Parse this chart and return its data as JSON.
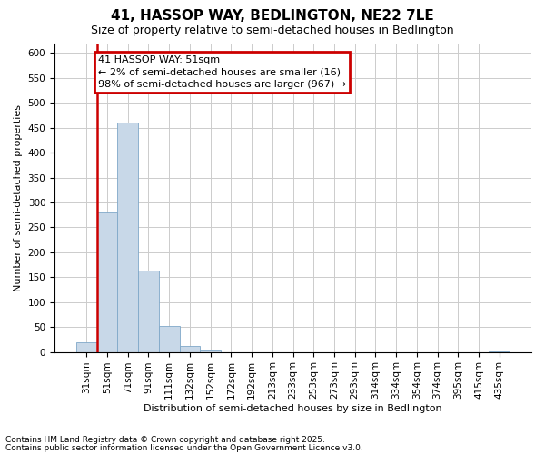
{
  "title": "41, HASSOP WAY, BEDLINGTON, NE22 7LE",
  "subtitle": "Size of property relative to semi-detached houses in Bedlington",
  "xlabel": "Distribution of semi-detached houses by size in Bedlington",
  "ylabel": "Number of semi-detached properties",
  "footnote1": "Contains HM Land Registry data © Crown copyright and database right 2025.",
  "footnote2": "Contains public sector information licensed under the Open Government Licence v3.0.",
  "annotation_title": "41 HASSOP WAY: 51sqm",
  "annotation_line1": "← 2% of semi-detached houses are smaller (16)",
  "annotation_line2": "98% of semi-detached houses are larger (967) →",
  "categories": [
    "31sqm",
    "51sqm",
    "71sqm",
    "91sqm",
    "111sqm",
    "132sqm",
    "152sqm",
    "172sqm",
    "192sqm",
    "213sqm",
    "233sqm",
    "253sqm",
    "273sqm",
    "293sqm",
    "314sqm",
    "334sqm",
    "354sqm",
    "374sqm",
    "395sqm",
    "415sqm",
    "435sqm"
  ],
  "values": [
    20,
    280,
    460,
    163,
    52,
    12,
    3,
    0,
    0,
    0,
    0,
    0,
    0,
    0,
    0,
    0,
    0,
    0,
    0,
    0,
    2
  ],
  "bar_color": "#c8d8e8",
  "bar_edge_color": "#7fa8c8",
  "highlight_line_color": "#cc0000",
  "annotation_box_color": "#cc0000",
  "background_color": "#ffffff",
  "grid_color": "#cccccc",
  "ylim": [
    0,
    620
  ],
  "yticks": [
    0,
    50,
    100,
    150,
    200,
    250,
    300,
    350,
    400,
    450,
    500,
    550,
    600
  ],
  "title_fontsize": 11,
  "subtitle_fontsize": 9,
  "axis_label_fontsize": 8,
  "tick_fontsize": 7.5,
  "annotation_fontsize": 8,
  "footnote_fontsize": 6.5
}
